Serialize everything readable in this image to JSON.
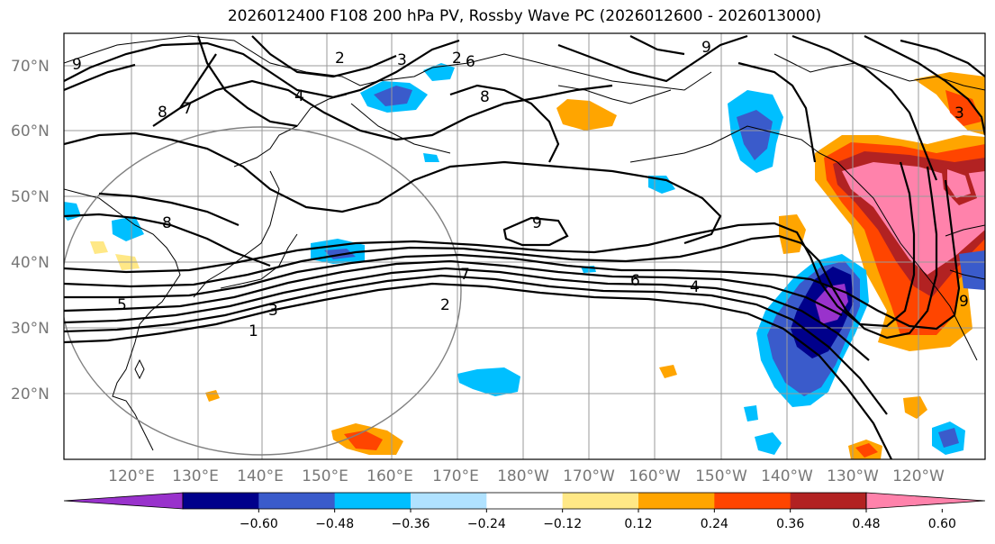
{
  "title": "2026012400 F108 200 hPa PV, Rossby Wave PC (2026012600 - 2026013000)",
  "lat_labels": [
    "70°N",
    "60°N",
    "50°N",
    "40°N",
    "30°N",
    "20°N"
  ],
  "lon_labels": [
    "120°E",
    "130°E",
    "140°E",
    "150°E",
    "160°E",
    "170°E",
    "180°W",
    "170°W",
    "160°W",
    "150°W",
    "140°W",
    "130°W",
    "120°W"
  ],
  "colorbar": {
    "colors": [
      "#9932CC",
      "#00008B",
      "#3A5BCB",
      "#00BFFF",
      "#B0E2FF",
      "#FFFFFF",
      "#FFE886",
      "#FFA500",
      "#FF4500",
      "#B22222",
      "#FF82AB"
    ],
    "ticks": [
      "−0.60",
      "−0.48",
      "−0.36",
      "−0.24",
      "−0.12",
      "0.12",
      "0.24",
      "0.36",
      "0.48",
      "0.60"
    ]
  },
  "contour_labels": [
    "9",
    "8",
    "7",
    "2",
    "3",
    "2",
    "6",
    "8",
    "9",
    "4",
    "8",
    "9",
    "7",
    "6",
    "4",
    "2",
    "3",
    "1",
    "5",
    "3",
    "9"
  ]
}
